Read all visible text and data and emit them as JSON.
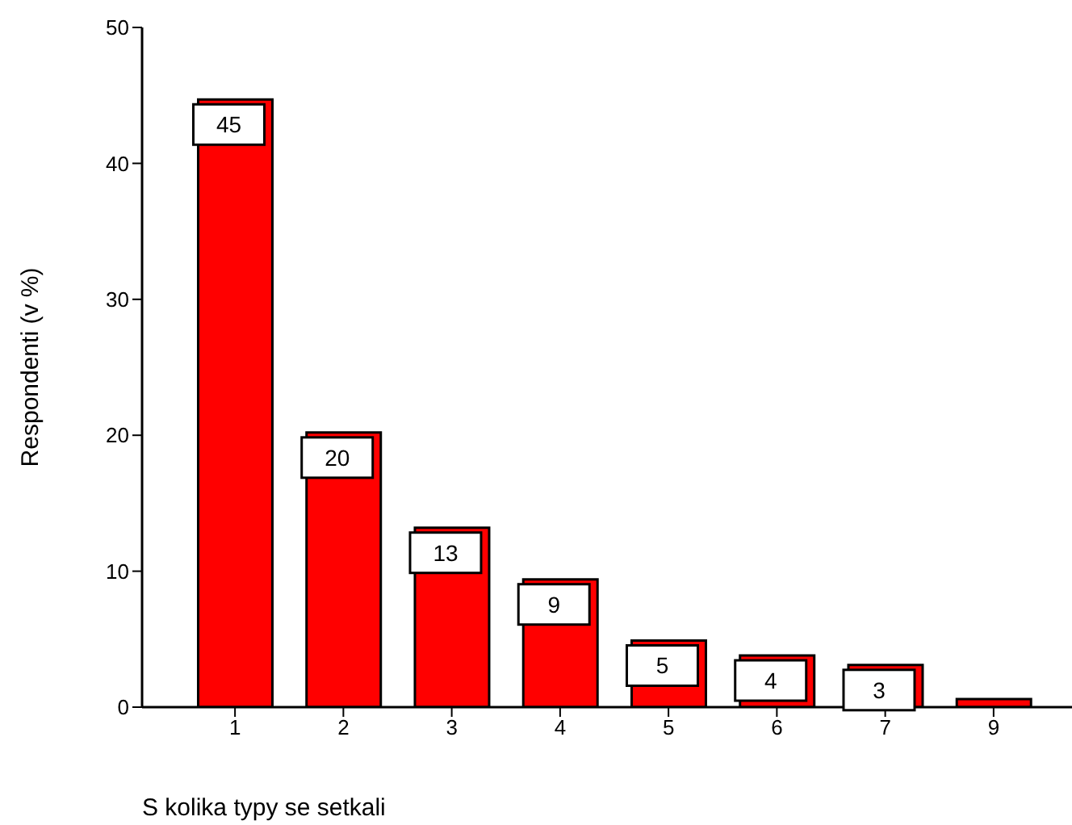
{
  "chart_data": {
    "type": "bar",
    "xlabel": "S kolika typy se setkali",
    "ylabel": "Respondenti (v %)",
    "categories": [
      "1",
      "2",
      "3",
      "4",
      "5",
      "6",
      "7",
      "9"
    ],
    "values": [
      44.7,
      20.2,
      13.2,
      9.4,
      4.9,
      3.8,
      3.1,
      0.6
    ],
    "value_labels": [
      "45",
      "20",
      "13",
      "9",
      "5",
      "4",
      "3",
      null
    ],
    "color": "#ff0000",
    "ylim": [
      0,
      50
    ],
    "yticks": [
      0,
      10,
      20,
      30,
      40,
      50
    ],
    "grid": false,
    "legend": false
  }
}
